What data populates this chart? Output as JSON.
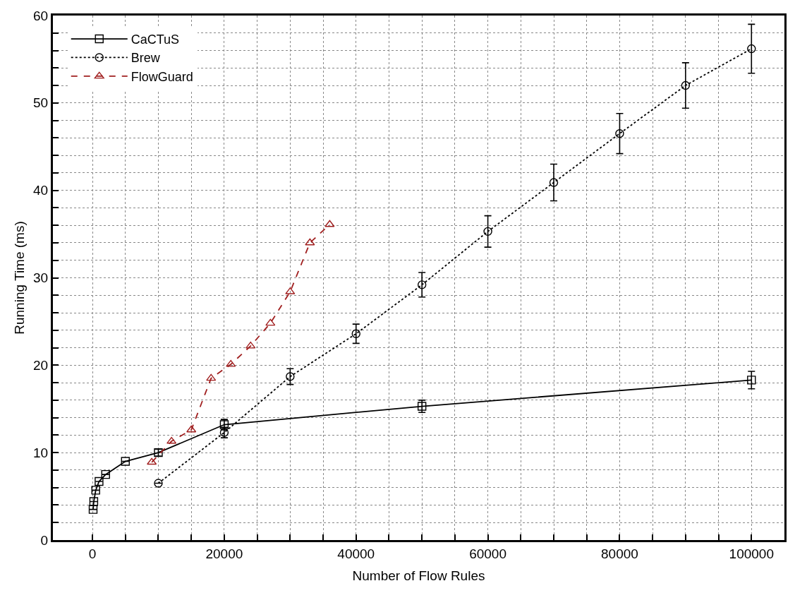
{
  "chart_data": {
    "type": "line",
    "xlabel": "Number of Flow Rules",
    "ylabel": "Running Time (ms)",
    "xlim": [
      -6000,
      105000
    ],
    "ylim": [
      0,
      60
    ],
    "xticks": [
      0,
      {
        "value": 5000,
        "label": null
      },
      {
        "value": 10000,
        "label": null
      },
      {
        "value": 15000,
        "label": null
      },
      20000,
      {
        "value": 25000,
        "label": null
      },
      {
        "value": 30000,
        "label": null
      },
      {
        "value": 35000,
        "label": null
      },
      40000,
      {
        "value": 45000,
        "label": null
      },
      {
        "value": 50000,
        "label": null
      },
      {
        "value": 55000,
        "label": null
      },
      60000,
      {
        "value": 65000,
        "label": null
      },
      {
        "value": 70000,
        "label": null
      },
      {
        "value": 75000,
        "label": null
      },
      80000,
      {
        "value": 85000,
        "label": null
      },
      {
        "value": 90000,
        "label": null
      },
      {
        "value": 95000,
        "label": null
      },
      100000
    ],
    "yticks": [
      0,
      {
        "value": 2,
        "label": null
      },
      {
        "value": 4,
        "label": null
      },
      {
        "value": 6,
        "label": null
      },
      {
        "value": 8,
        "label": null
      },
      10,
      {
        "value": 12,
        "label": null
      },
      {
        "value": 14,
        "label": null
      },
      {
        "value": 16,
        "label": null
      },
      {
        "value": 18,
        "label": null
      },
      20,
      {
        "value": 22,
        "label": null
      },
      {
        "value": 24,
        "label": null
      },
      {
        "value": 26,
        "label": null
      },
      {
        "value": 28,
        "label": null
      },
      30,
      {
        "value": 32,
        "label": null
      },
      {
        "value": 34,
        "label": null
      },
      {
        "value": 36,
        "label": null
      },
      {
        "value": 38,
        "label": null
      },
      40,
      {
        "value": 42,
        "label": null
      },
      {
        "value": 44,
        "label": null
      },
      {
        "value": 46,
        "label": null
      },
      {
        "value": 48,
        "label": null
      },
      50,
      {
        "value": 52,
        "label": null
      },
      {
        "value": 54,
        "label": null
      },
      {
        "value": 56,
        "label": null
      },
      {
        "value": 58,
        "label": null
      },
      60
    ],
    "grid": true,
    "legend": "top left",
    "series": [
      {
        "name": "CaCTuS",
        "color": "#000000",
        "marker": "square",
        "line_style": "solid",
        "x": [
          100,
          200,
          500,
          1000,
          2000,
          5000,
          10000,
          20000,
          50000,
          100000
        ],
        "values": [
          3.5,
          4.4,
          5.7,
          6.7,
          7.5,
          9.0,
          10.0,
          13.2,
          15.3,
          18.3
        ],
        "errors": [
          null,
          null,
          null,
          null,
          null,
          null,
          0.4,
          0.6,
          0.7,
          1.0
        ]
      },
      {
        "name": "Brew",
        "color": "#000000",
        "marker": "circle",
        "line_style": "dotted",
        "x": [
          10000,
          20000,
          30000,
          40000,
          50000,
          60000,
          70000,
          80000,
          90000,
          100000
        ],
        "values": [
          6.5,
          12.3,
          18.7,
          23.6,
          29.2,
          35.3,
          40.9,
          46.5,
          52.0,
          56.2
        ],
        "errors": [
          null,
          0.6,
          0.9,
          1.1,
          1.4,
          1.8,
          2.1,
          2.3,
          2.6,
          2.8
        ]
      },
      {
        "name": "FlowGuard",
        "color": "#a01e1e",
        "marker": "triangle",
        "line_style": "dashed",
        "x": [
          9000,
          12000,
          15000,
          18000,
          21000,
          24000,
          27000,
          30000,
          33000,
          36000
        ],
        "values": [
          8.9,
          11.3,
          12.6,
          18.5,
          20.1,
          22.2,
          24.8,
          28.4,
          34.0,
          36.1
        ]
      }
    ]
  }
}
